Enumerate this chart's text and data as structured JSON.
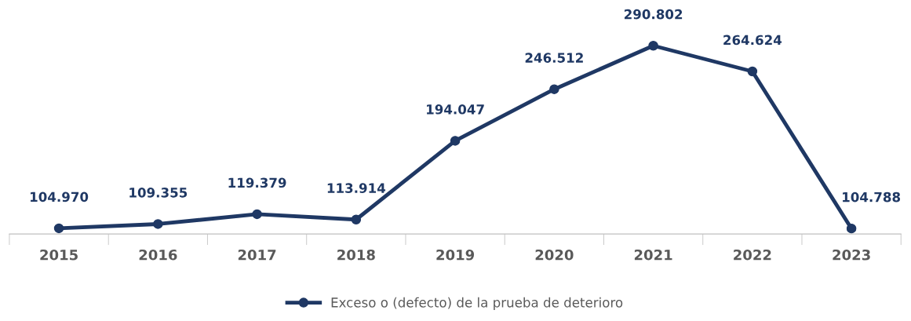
{
  "chart_data": {
    "type": "line",
    "categories": [
      "2015",
      "2016",
      "2017",
      "2018",
      "2019",
      "2020",
      "2021",
      "2022",
      "2023"
    ],
    "series": [
      {
        "name": "Exceso o (defecto) de la prueba de deterioro",
        "color": "#1f3864",
        "values": [
          104970,
          109355,
          119379,
          113914,
          194047,
          246512,
          290802,
          264624,
          104788
        ],
        "value_labels": [
          "104.970",
          "109.355",
          "119.379",
          "113.914",
          "194.047",
          "246.512",
          "290.802",
          "264.624",
          "104.788"
        ]
      }
    ],
    "tick_labels": "x",
    "marker": "circle",
    "line_style": "solid",
    "grid": false,
    "legend": "bottom"
  }
}
